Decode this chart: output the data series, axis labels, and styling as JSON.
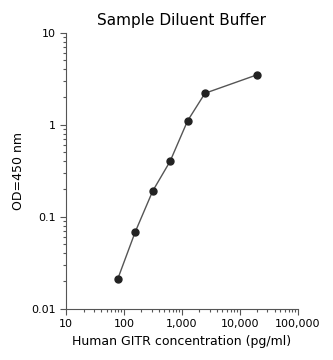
{
  "title": "Sample Diluent Buffer",
  "xlabel": "Human GITR concentration (pg/ml)",
  "ylabel": "OD=450 nm",
  "x_values": [
    78,
    156,
    313,
    625,
    1250,
    2500,
    20000
  ],
  "y_values": [
    0.021,
    0.068,
    0.19,
    0.4,
    1.1,
    2.2,
    3.5
  ],
  "xlim": [
    10,
    100000
  ],
  "ylim": [
    0.01,
    10
  ],
  "line_color": "#555555",
  "marker_color": "#222222",
  "marker_size": 5,
  "line_width": 1.0,
  "background_color": "#ffffff",
  "xticks": [
    10,
    100,
    1000,
    10000,
    100000
  ],
  "xtick_labels": [
    "10",
    "100",
    "1,000",
    "10,000",
    "100,000"
  ],
  "yticks": [
    0.01,
    0.1,
    1,
    10
  ],
  "ytick_labels": [
    "0.01",
    "0.1",
    "1",
    "10"
  ],
  "title_fontsize": 11,
  "label_fontsize": 9,
  "tick_fontsize": 8
}
